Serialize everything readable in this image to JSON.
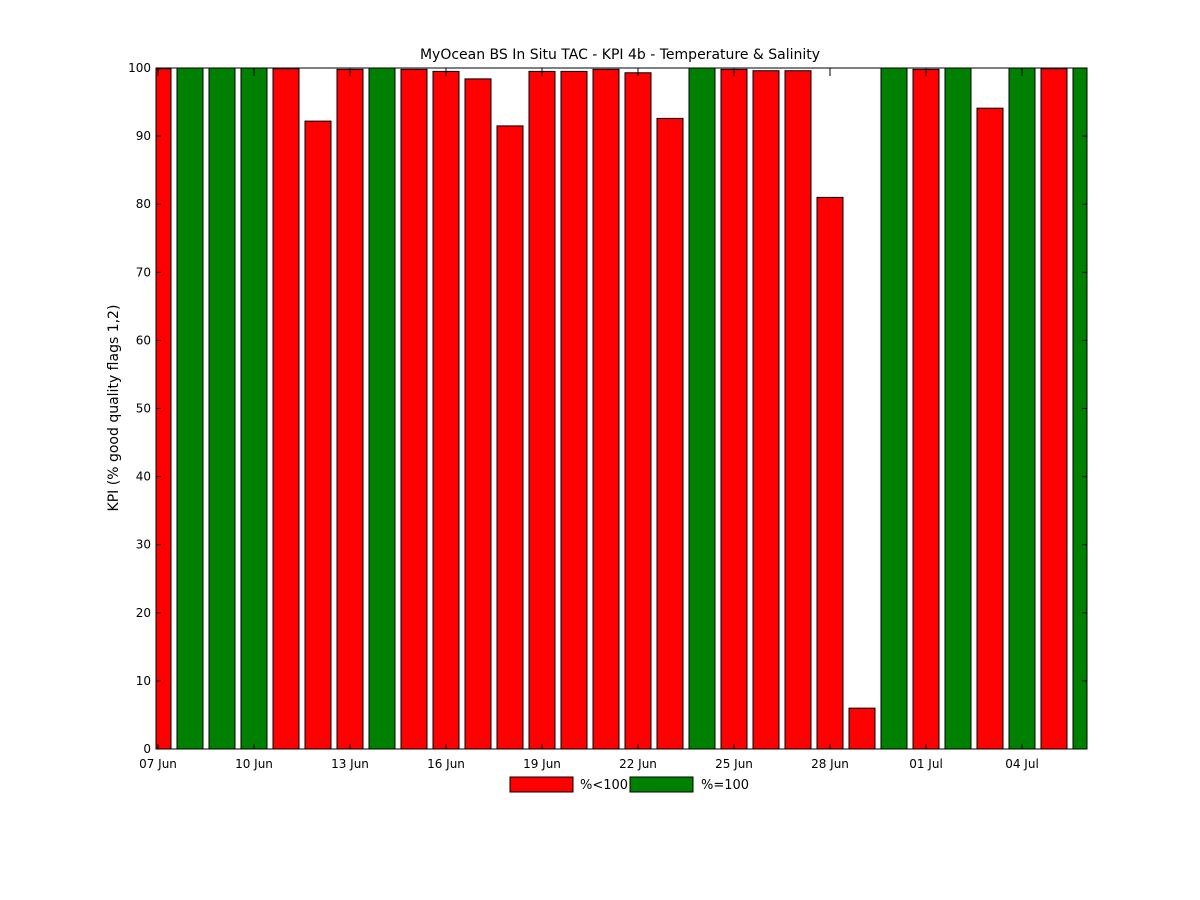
{
  "chart_data": {
    "type": "bar",
    "title": "MyOcean  BS In Situ TAC - KPI 4b - Temperature & Salinity",
    "xlabel": "",
    "ylabel": "KPI (% good quality flags 1,2)",
    "ylim": [
      0,
      100
    ],
    "y_ticks": [
      0,
      10,
      20,
      30,
      40,
      50,
      60,
      70,
      80,
      90,
      100
    ],
    "x_tick_labels": [
      {
        "index": 0,
        "label": "07 Jun"
      },
      {
        "index": 3,
        "label": "10 Jun"
      },
      {
        "index": 6,
        "label": "13 Jun"
      },
      {
        "index": 9,
        "label": "16 Jun"
      },
      {
        "index": 12,
        "label": "19 Jun"
      },
      {
        "index": 15,
        "label": "22 Jun"
      },
      {
        "index": 18,
        "label": "25 Jun"
      },
      {
        "index": 21,
        "label": "28 Jun"
      },
      {
        "index": 24,
        "label": "01 Jul"
      },
      {
        "index": 27,
        "label": "04 Jul"
      }
    ],
    "values": [
      99.9,
      100,
      100,
      100,
      99.9,
      92.2,
      99.8,
      100,
      99.8,
      99.5,
      98.4,
      91.5,
      99.5,
      99.5,
      99.8,
      99.3,
      92.6,
      100,
      99.8,
      99.6,
      99.6,
      81.0,
      6.0,
      100,
      99.8,
      100,
      94.1,
      100,
      99.9,
      100
    ],
    "first_bar_partial": true,
    "last_bar_partial": true,
    "grid": false,
    "legend_position": "bottom-center",
    "legend": [
      {
        "label": "%<100",
        "color": "#ff0000"
      },
      {
        "label": "%=100",
        "color": "#008000"
      }
    ]
  },
  "colors": {
    "below_100": "#ff0000",
    "equal_100": "#008000",
    "axis": "#000000"
  }
}
